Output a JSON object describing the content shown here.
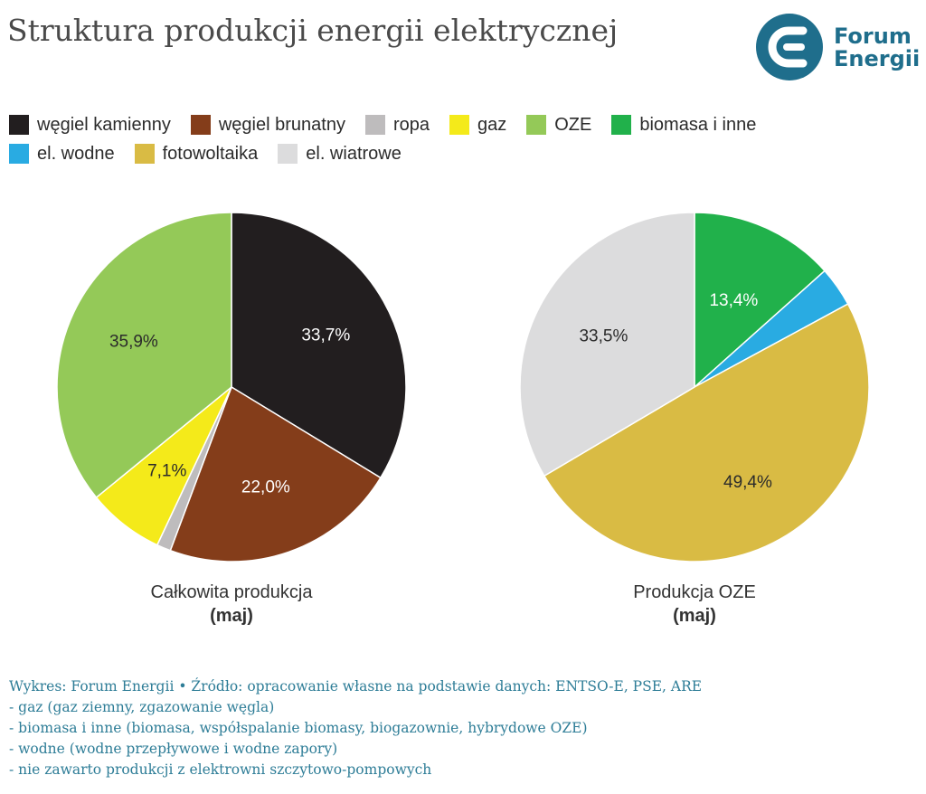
{
  "title": "Struktura produkcji energii elektrycznej",
  "logo": {
    "line1": "Forum",
    "line2": "Energii",
    "icon": "forum-energii-logo-icon"
  },
  "legend": [
    [
      {
        "label": "węgiel kamienny",
        "color": "#221e1f"
      },
      {
        "label": "węgiel brunatny",
        "color": "#843d1a"
      },
      {
        "label": "ropa",
        "color": "#bebcbd"
      },
      {
        "label": "gaz",
        "color": "#f4ea1a"
      },
      {
        "label": "OZE",
        "color": "#94c958"
      },
      {
        "label": "biomasa i inne",
        "color": "#21b14b"
      }
    ],
    [
      {
        "label": "el. wodne",
        "color": "#29abe2"
      },
      {
        "label": "fotowoltaika",
        "color": "#d9bb44"
      },
      {
        "label": "el. wiatrowe",
        "color": "#dcdcdd"
      }
    ]
  ],
  "chart_data": [
    {
      "type": "pie",
      "title": "Całkowita produkcja",
      "subtitle": "(maj)",
      "slices": [
        {
          "label": "węgiel kamienny",
          "value": 33.7,
          "display": "33,7%",
          "color": "#221e1f",
          "text_color": "#ffffff"
        },
        {
          "label": "węgiel brunatny",
          "value": 22.0,
          "display": "22,0%",
          "color": "#843d1a",
          "text_color": "#ffffff"
        },
        {
          "label": "ropa",
          "value": 1.3,
          "display": "",
          "color": "#bebcbd",
          "text_color": "#2b2b2b"
        },
        {
          "label": "gaz",
          "value": 7.1,
          "display": "7,1%",
          "color": "#f4ea1a",
          "text_color": "#2b2b2b"
        },
        {
          "label": "OZE",
          "value": 35.9,
          "display": "35,9%",
          "color": "#94c958",
          "text_color": "#2b2b2b"
        }
      ]
    },
    {
      "type": "pie",
      "title": "Produkcja OZE",
      "subtitle": "(maj)",
      "slices": [
        {
          "label": "biomasa i inne",
          "value": 13.4,
          "display": "13,4%",
          "color": "#21b14b",
          "text_color": "#ffffff"
        },
        {
          "label": "el. wodne",
          "value": 3.7,
          "display": "",
          "color": "#29abe2",
          "text_color": "#2b2b2b"
        },
        {
          "label": "fotowoltaika",
          "value": 49.4,
          "display": "49,4%",
          "color": "#d9bb44",
          "text_color": "#2b2b2b"
        },
        {
          "label": "el. wiatrowe",
          "value": 33.5,
          "display": "33,5%",
          "color": "#dcdcdd",
          "text_color": "#2b2b2b"
        }
      ]
    }
  ],
  "footer": [
    "Wykres: Forum Energii • Źródło: opracowanie własne na podstawie danych: ENTSO-E, PSE, ARE",
    "- gaz (gaz ziemny, zgazowanie węgla)",
    "- biomasa i inne (biomasa, współspalanie biomasy, biogazownie, hybrydowe OZE)",
    "- wodne (wodne przepływowe i wodne zapory)",
    "- nie zawarto produkcji z elektrowni szczytowo-pompowych"
  ]
}
